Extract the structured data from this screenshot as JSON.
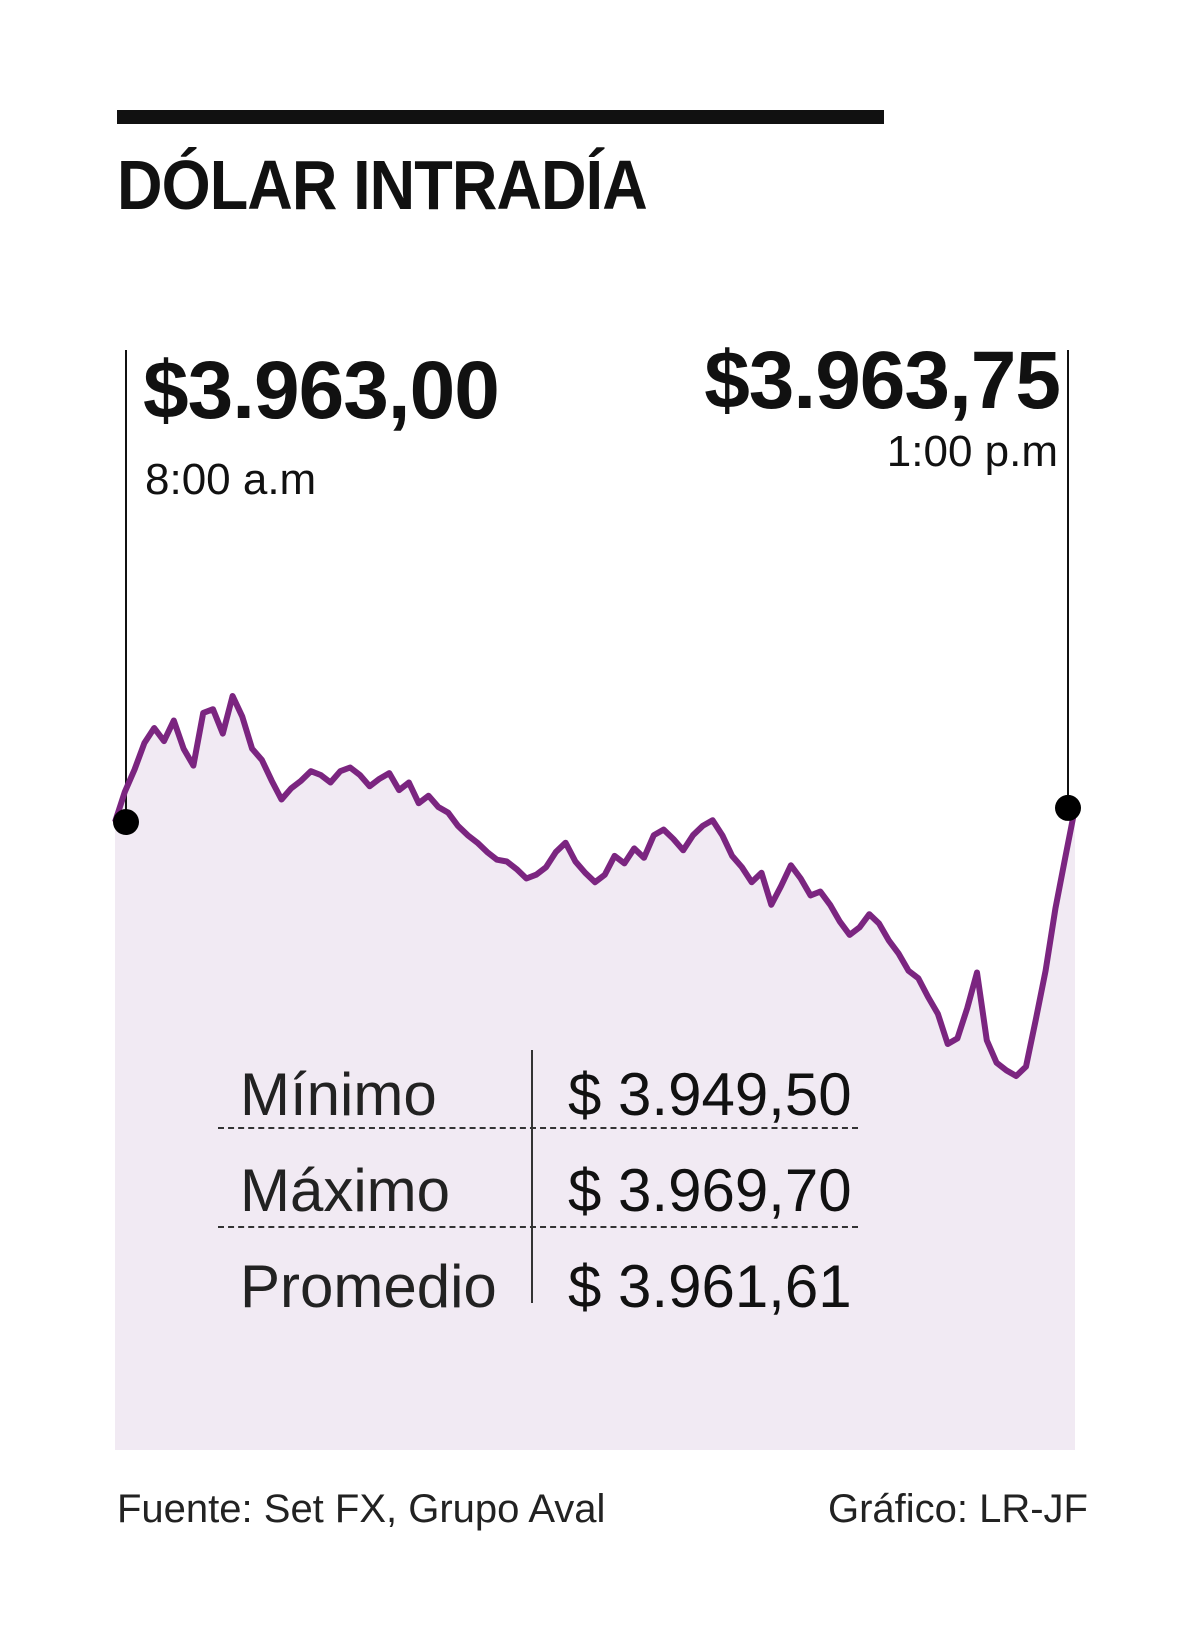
{
  "chart_data": {
    "type": "area",
    "title": "DÓLAR INTRADÍA",
    "open": {
      "value": "$3.963,00",
      "time": "8:00 a.m",
      "price": 3963.0
    },
    "close": {
      "value": "$3.963,75",
      "time": "1:00 p.m",
      "price": 3963.75
    },
    "ylim": [
      3949.5,
      3969.7
    ],
    "stats": [
      {
        "label": "Mínimo",
        "value": "$ 3.949,50"
      },
      {
        "label": "Máximo",
        "value": "$ 3.969,70"
      },
      {
        "label": "Promedio",
        "value": "$ 3.961,61"
      }
    ],
    "series": [
      {
        "values": [
          3963.0,
          3964.6,
          3965.8,
          3967.2,
          3968.0,
          3967.3,
          3968.4,
          3966.9,
          3966.0,
          3968.8,
          3969.0,
          3967.7,
          3969.7,
          3968.6,
          3966.9,
          3966.3,
          3965.2,
          3964.2,
          3964.8,
          3965.2,
          3965.7,
          3965.5,
          3965.1,
          3965.7,
          3965.9,
          3965.5,
          3964.9,
          3965.3,
          3965.6,
          3964.7,
          3965.1,
          3964.0,
          3964.4,
          3963.8,
          3963.5,
          3962.8,
          3962.3,
          3961.9,
          3961.4,
          3961.0,
          3960.9,
          3960.5,
          3960.0,
          3960.2,
          3960.6,
          3961.4,
          3961.9,
          3960.9,
          3960.3,
          3959.8,
          3960.2,
          3961.2,
          3960.8,
          3961.6,
          3961.1,
          3962.3,
          3962.6,
          3962.1,
          3961.5,
          3962.3,
          3962.8,
          3963.1,
          3962.3,
          3961.2,
          3960.6,
          3959.8,
          3960.3,
          3958.6,
          3959.6,
          3960.7,
          3960.0,
          3959.1,
          3959.3,
          3958.6,
          3957.7,
          3957.0,
          3957.4,
          3958.1,
          3957.6,
          3956.7,
          3956.0,
          3955.1,
          3954.7,
          3953.7,
          3952.8,
          3951.2,
          3951.5,
          3953.1,
          3955.0,
          3951.4,
          3950.2,
          3949.8,
          3949.5,
          3950.0,
          3952.5,
          3955.1,
          3958.4,
          3961.1,
          3963.75
        ]
      }
    ]
  },
  "footer": {
    "source": "Fuente: Set FX, Grupo Aval",
    "credit": "Gráfico: LR-JF"
  },
  "colors": {
    "line": "#7b2580",
    "fill": "#f1eaf3",
    "text": "#111111"
  }
}
